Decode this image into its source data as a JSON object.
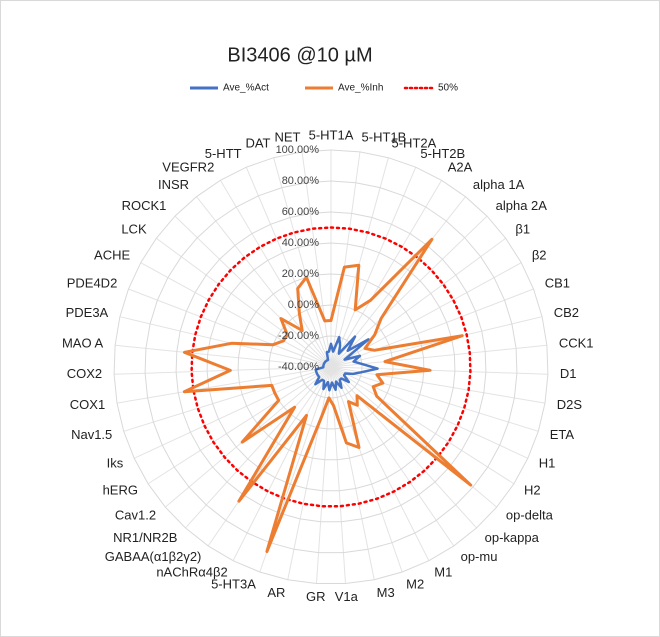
{
  "chart_data": {
    "type": "radar",
    "title": "BI3406 @10 µM",
    "categories": [
      "5-HT1A",
      "5-HT1B",
      "5-HT2A",
      "5-HT2B",
      "A2A",
      "alpha 1A",
      "alpha 2A",
      "β1",
      "β2",
      "CB1",
      "CB2",
      "CCK1",
      "D1",
      "D2S",
      "ETA",
      "H1",
      "H2",
      "op-delta",
      "op-kappa",
      "op-mu",
      "M1",
      "M2",
      "M3",
      "V1a",
      "GR",
      "AR",
      "5-HT3A",
      "nAChRα4β2",
      "GABAA(α1β2γ2)",
      "NR1/NR2B",
      "Cav1.2",
      "hERG",
      "Iks",
      "Nav1.5",
      "COX1",
      "COX2",
      "MAO A",
      "PDE3A",
      "PDE4D2",
      "ACHE",
      "LCK",
      "ROCK1",
      "INSR",
      "VEGFR2",
      "5-HTT",
      "DAT",
      "NET"
    ],
    "series": [
      {
        "name": "Ave_%Act",
        "color": "#4472c4",
        "values": [
          -25,
          -30,
          -20,
          -25,
          -30,
          -15,
          -25,
          -10,
          -30,
          -20,
          -25,
          -20,
          -10,
          -20,
          -25,
          -30,
          -30,
          -25,
          -30,
          -30,
          -25,
          -30,
          -25,
          -30,
          -25,
          -30,
          -25,
          -30,
          -30,
          -25,
          -30,
          -30,
          -30,
          -30,
          -30,
          -35,
          -35,
          -35,
          -35,
          -35,
          -35,
          -35,
          -35,
          -35,
          -35,
          -30,
          -30
        ]
      },
      {
        "name": "Ave_%Inh",
        "color": "#ed7d31",
        "values": [
          -10,
          25,
          28,
          0,
          10,
          65,
          5,
          -5,
          -15,
          -10,
          47,
          -5,
          24,
          -10,
          -5,
          -10,
          -5,
          78,
          -15,
          -10,
          -15,
          15,
          10,
          -15,
          -20,
          -5,
          86,
          -5,
          65,
          -5,
          35,
          0,
          0,
          0,
          56,
          25,
          55,
          26,
          0,
          -5,
          -5,
          5,
          -10,
          0,
          15,
          20,
          -10
        ]
      }
    ],
    "reference": {
      "name": "50%",
      "value": 50,
      "color": "#ff0000"
    },
    "ylim": [
      -40,
      100
    ],
    "yticks": [
      {
        "value": -40,
        "label": "-40.00%"
      },
      {
        "value": -20,
        "label": "-20.00%"
      },
      {
        "value": 0,
        "label": "0.00%"
      },
      {
        "value": 20,
        "label": "20.00%"
      },
      {
        "value": 40,
        "label": "40.00%"
      },
      {
        "value": 60,
        "label": "60.00%"
      },
      {
        "value": 80,
        "label": "80.00%"
      },
      {
        "value": 100,
        "label": "100.00%"
      }
    ],
    "grid": true
  }
}
